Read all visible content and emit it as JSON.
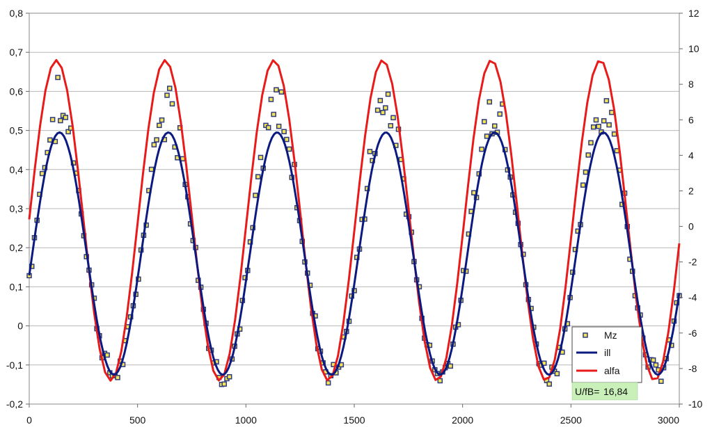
{
  "chart_data": {
    "type": "line",
    "x_range": [
      0,
      3000
    ],
    "x_ticks": [
      "0",
      "500",
      "1000",
      "1500",
      "2000",
      "2500",
      "3000"
    ],
    "x_tick_values": [
      0,
      500,
      1000,
      1500,
      2000,
      2500,
      3000
    ],
    "y_left_range": [
      -0.2,
      0.8
    ],
    "y_left_ticks": [
      "0,8",
      "0,7",
      "0,6",
      "0,5",
      "0,4",
      "0,3",
      "0,2",
      "0,1",
      "0",
      "-0,1",
      "-0,2"
    ],
    "y_left_tick_values": [
      0.8,
      0.7,
      0.6,
      0.5,
      0.4,
      0.3,
      0.2,
      0.1,
      0,
      -0.1,
      -0.2
    ],
    "y_right_range": [
      -10,
      12
    ],
    "y_right_ticks": [
      "12",
      "10",
      "8",
      "6",
      "4",
      "2",
      "0",
      "-2",
      "-4",
      "-6",
      "-8",
      "-10"
    ],
    "y_right_tick_values": [
      12,
      10,
      8,
      6,
      4,
      2,
      0,
      -2,
      -4,
      -6,
      -8,
      -10
    ],
    "grid": "horizontal",
    "legend_position": "bottom-right",
    "series": [
      {
        "name": "Mz",
        "kind": "points",
        "color": "#F2E35A",
        "edge": "#2E3A7A",
        "axis": "left"
      },
      {
        "name": "ill",
        "kind": "line",
        "color": "#0B1A80",
        "axis": "left",
        "model": {
          "period": 502,
          "mean": 0.185,
          "amplitude": 0.31,
          "peak_x": 140
        }
      },
      {
        "name": "alfa",
        "kind": "line",
        "color": "#E81A1A",
        "axis": "left",
        "model": {
          "period": 502,
          "mean": 0.27,
          "amplitude": 0.41,
          "peak_x": 125
        }
      }
    ],
    "annotation": {
      "label": "U/fB=",
      "value": "16,84",
      "background": "#C8F0B8"
    }
  }
}
